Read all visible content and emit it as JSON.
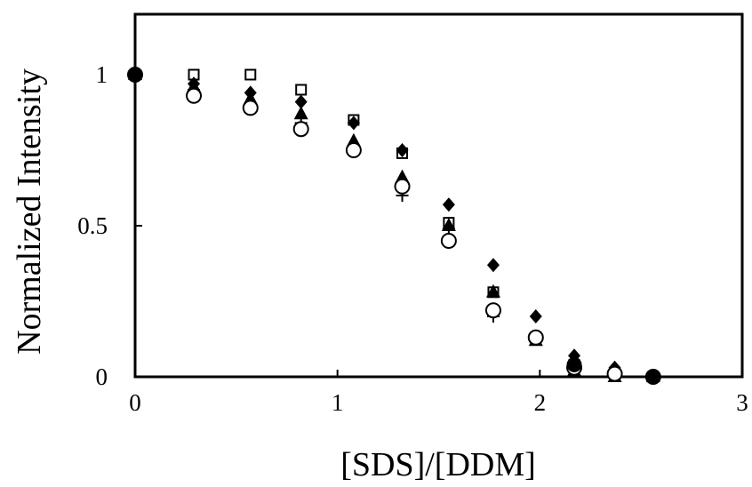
{
  "chart_data": {
    "type": "scatter",
    "title": "",
    "xlabel": "[SDS]/[DDM]",
    "ylabel": "Normalized Intensity",
    "xlim": [
      0,
      3
    ],
    "ylim": [
      0,
      1.2
    ],
    "xticks": [
      0,
      1,
      2,
      3
    ],
    "yticks": [
      0,
      0.5,
      1
    ],
    "xtick_labels": [
      "0",
      "1",
      "2",
      "3"
    ],
    "ytick_labels": [
      "0",
      "0.5",
      "1"
    ],
    "grid": false,
    "legend": "none",
    "series": [
      {
        "marker": "open-square",
        "x": [
          0,
          0.29,
          0.57,
          0.82,
          1.08,
          1.32,
          1.55,
          1.77,
          1.98,
          2.17,
          2.37,
          2.56
        ],
        "y": [
          1.0,
          1.0,
          1.0,
          0.95,
          0.85,
          0.74,
          0.51,
          0.28,
          0.13,
          0.04,
          0.01,
          0.0
        ]
      },
      {
        "marker": "filled-diamond",
        "x": [
          0,
          0.29,
          0.57,
          0.82,
          1.08,
          1.32,
          1.55,
          1.77,
          1.98,
          2.17,
          2.37,
          2.56
        ],
        "y": [
          1.0,
          0.97,
          0.94,
          0.91,
          0.84,
          0.75,
          0.57,
          0.37,
          0.2,
          0.07,
          0.03,
          0.0
        ]
      },
      {
        "marker": "filled-triangle",
        "x": [
          0,
          0.29,
          0.57,
          0.82,
          1.08,
          1.32,
          1.55,
          1.77,
          1.98,
          2.17,
          2.37,
          2.56
        ],
        "y": [
          1.0,
          0.96,
          0.92,
          0.87,
          0.78,
          0.66,
          0.5,
          0.28,
          0.12,
          0.02,
          0.0,
          0.0
        ]
      },
      {
        "marker": "plus",
        "x": [
          0,
          0.29,
          0.57,
          0.82,
          1.08,
          1.32,
          1.55,
          1.77,
          1.98,
          2.17,
          2.37,
          2.56
        ],
        "y": [
          1.0,
          0.95,
          0.9,
          0.84,
          0.76,
          0.6,
          0.49,
          0.2,
          0.13,
          0.04,
          0.01,
          0.0
        ]
      },
      {
        "marker": "open-circle",
        "x": [
          0,
          0.29,
          0.57,
          0.82,
          1.08,
          1.32,
          1.55,
          1.77,
          1.98,
          2.17,
          2.37,
          2.56
        ],
        "y": [
          1.0,
          0.93,
          0.89,
          0.82,
          0.75,
          0.63,
          0.45,
          0.22,
          0.13,
          0.03,
          0.01,
          0.0
        ]
      },
      {
        "marker": "filled-circle",
        "x": [
          0,
          2.17,
          2.56
        ],
        "y": [
          1.0,
          0.04,
          0.0
        ]
      }
    ]
  }
}
